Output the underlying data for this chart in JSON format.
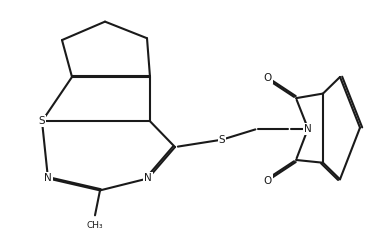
{
  "bg": "#ffffff",
  "lc": "#1a1a1a",
  "lw": 1.5,
  "dbo": 0.006,
  "fs": 7.5,
  "figsize": [
    3.71,
    2.29
  ],
  "dpi": 100,
  "xlim": [
    0.0,
    1.0
  ],
  "ylim": [
    0.0,
    1.0
  ]
}
